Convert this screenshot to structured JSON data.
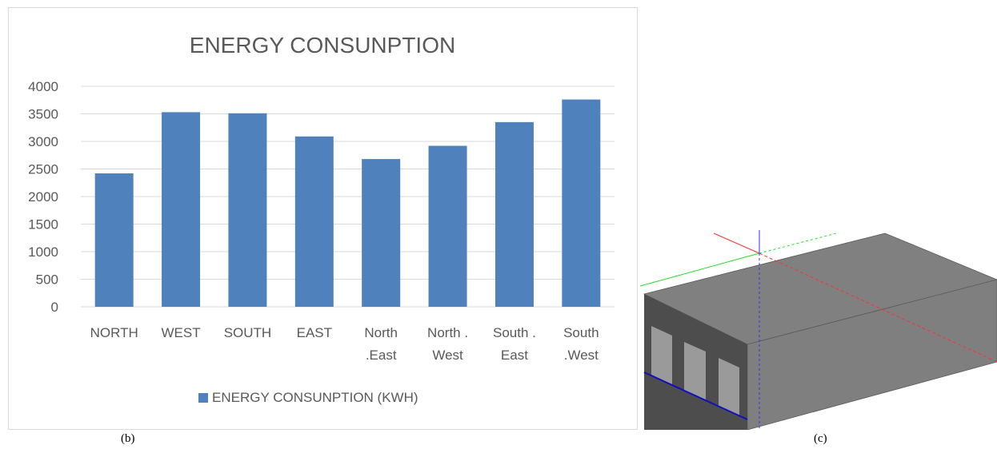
{
  "chart_data": {
    "type": "bar",
    "title": "ENERGY CONSUNPTION",
    "categories": [
      [
        "NORTH"
      ],
      [
        "WEST"
      ],
      [
        "SOUTH"
      ],
      [
        "EAST"
      ],
      [
        "North",
        ".East"
      ],
      [
        "North .",
        "West"
      ],
      [
        "South .",
        "East"
      ],
      [
        "South",
        ".West"
      ]
    ],
    "series": [
      {
        "name": "ENERGY CONSUNPTION (KWH)",
        "color": "#4f81bd",
        "values": [
          2420,
          3530,
          3510,
          3090,
          2680,
          2920,
          3350,
          3760
        ]
      }
    ],
    "ylim": [
      0,
      4000
    ],
    "yticks": [
      0,
      500,
      1000,
      1500,
      2000,
      2500,
      3000,
      3500,
      4000
    ],
    "grid": true,
    "legend": "bottom"
  },
  "captions": {
    "left": "(b)",
    "right": "(c)"
  },
  "colors": {
    "bar": "#4f81bd",
    "grid": "#d9d9d9",
    "text": "#595959"
  }
}
